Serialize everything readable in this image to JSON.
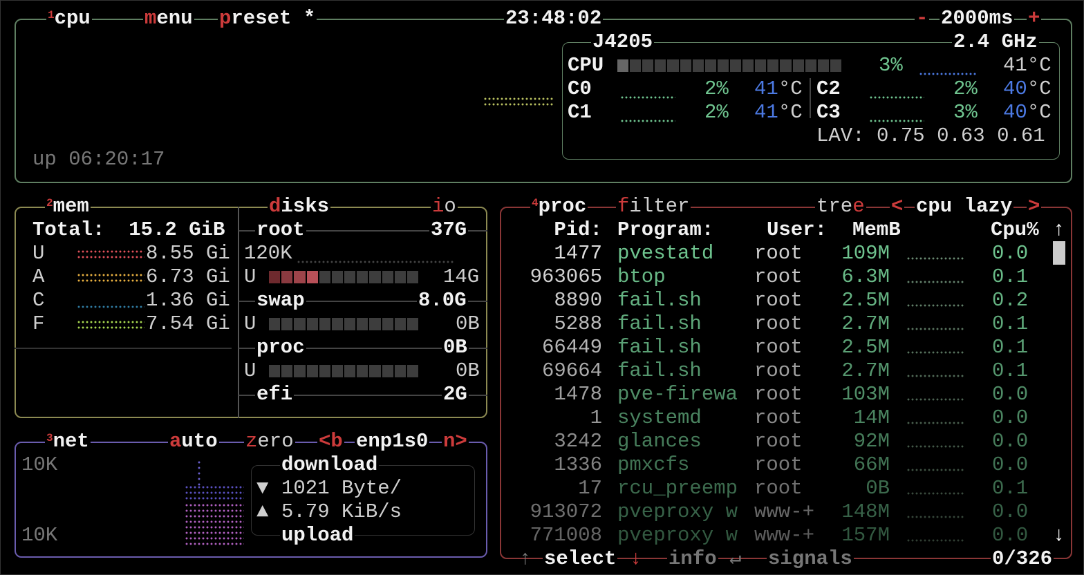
{
  "cpu": {
    "num": "1",
    "title": "cpu",
    "menu": {
      "key": "m",
      "rest": "enu"
    },
    "preset": {
      "key": "p",
      "rest": "reset *"
    },
    "clock": "23:48:02",
    "minus": "-",
    "interval": "2000ms",
    "plus": "+",
    "uptime": "up 06:20:17",
    "model": "J4205",
    "freq": "2.4 GHz",
    "total": {
      "label": "CPU",
      "pct": "3%",
      "temp": "41°C",
      "usage_percent": 3
    },
    "cores": [
      {
        "label": "C0",
        "pct": "2%",
        "temp": "41",
        "unit": "°C"
      },
      {
        "label": "C1",
        "pct": "2%",
        "temp": "41",
        "unit": "°C"
      },
      {
        "label": "C2",
        "pct": "2%",
        "temp": "40",
        "unit": "°C"
      },
      {
        "label": "C3",
        "pct": "3%",
        "temp": "40",
        "unit": "°C"
      }
    ],
    "lav_label": "LAV:",
    "lav": [
      "0.75",
      "0.63",
      "0.61"
    ]
  },
  "mem": {
    "num": "2",
    "title": "mem",
    "total": "Total:  15.2 GiB",
    "rows": [
      {
        "key": "U",
        "value": "8.55 Gi",
        "color": "#e0505a"
      },
      {
        "key": "A",
        "value": "6.73 Gi",
        "color": "#e8b040"
      },
      {
        "key": "C",
        "value": "1.36 Gi",
        "color": "#2f7aa0"
      },
      {
        "key": "F",
        "value": "7.54 Gi",
        "color": "#a8d850"
      }
    ]
  },
  "disks": {
    "title": {
      "key": "d",
      "rest": "isks"
    },
    "io": {
      "key": "i",
      "rest": "o"
    },
    "root": {
      "name": "root",
      "size": "37G",
      "io": "120K",
      "used_label": "U",
      "used": "14G",
      "usage_fraction": 0.33
    },
    "swap": {
      "name": "swap",
      "size": "8.0G",
      "used_label": "U",
      "used": "0B",
      "usage_fraction": 0
    },
    "proc": {
      "name": "proc",
      "size": "0B",
      "used_label": "U",
      "used": "0B",
      "usage_fraction": 0
    },
    "efi": {
      "name": "efi",
      "size": "2G"
    }
  },
  "net": {
    "num": "3",
    "title": "net",
    "auto": {
      "key": "a",
      "rest": "uto"
    },
    "zero": {
      "key": "z",
      "rest": "ero"
    },
    "prev": "<b",
    "iface": "enp1s0",
    "next": "n>",
    "scale_top": "10K",
    "scale_bottom": "10K",
    "download_label": "download",
    "download_icon": "▼",
    "download": "1021 Byte/",
    "upload_icon": "▲",
    "upload": "5.79 KiB/s",
    "upload_label": "upload"
  },
  "proc": {
    "num": "4",
    "title": "proc",
    "filter": {
      "key": "f",
      "rest": "ilter"
    },
    "tree": {
      "rest": "tre",
      "key": "e"
    },
    "sort_prev": "<",
    "sort": "cpu lazy",
    "sort_next": ">",
    "headers": {
      "pid": "Pid:",
      "program": "Program:",
      "user": "User:",
      "mem": "MemB",
      "cpu": "Cpu%"
    },
    "scroll_up": "↑",
    "scroll_down": "↓",
    "rows": [
      {
        "pid": "1477",
        "program": "pvestatd",
        "user": "root",
        "mem": "109M",
        "cpu": "0.0"
      },
      {
        "pid": "963065",
        "program": "btop",
        "user": "root",
        "mem": "6.3M",
        "cpu": "0.1"
      },
      {
        "pid": "8890",
        "program": "fail.sh",
        "user": "root",
        "mem": "2.5M",
        "cpu": "0.2"
      },
      {
        "pid": "5288",
        "program": "fail.sh",
        "user": "root",
        "mem": "2.7M",
        "cpu": "0.1"
      },
      {
        "pid": "66449",
        "program": "fail.sh",
        "user": "root",
        "mem": "2.5M",
        "cpu": "0.1"
      },
      {
        "pid": "69664",
        "program": "fail.sh",
        "user": "root",
        "mem": "2.7M",
        "cpu": "0.1"
      },
      {
        "pid": "1478",
        "program": "pve-firewa",
        "user": "root",
        "mem": "103M",
        "cpu": "0.0"
      },
      {
        "pid": "1",
        "program": "systemd",
        "user": "root",
        "mem": "14M",
        "cpu": "0.0"
      },
      {
        "pid": "3242",
        "program": "glances",
        "user": "root",
        "mem": "92M",
        "cpu": "0.0"
      },
      {
        "pid": "1336",
        "program": "pmxcfs",
        "user": "root",
        "mem": "66M",
        "cpu": "0.0"
      },
      {
        "pid": "17",
        "program": "rcu_preemp",
        "user": "root",
        "mem": "0B",
        "cpu": "0.1"
      },
      {
        "pid": "913072",
        "program": "pveproxy w",
        "user": "www-+",
        "mem": "148M",
        "cpu": "0.0"
      },
      {
        "pid": "771008",
        "program": "pveproxy w",
        "user": "www-+",
        "mem": "157M",
        "cpu": "0.0"
      }
    ],
    "footer": {
      "up": "↑",
      "select": "select",
      "down": "↓",
      "info": "info",
      "enter": "↵",
      "signals": "signals",
      "count": "0/326"
    }
  },
  "colors": {
    "cpu_box": "#5f7f62",
    "mem_box": "#8c8a52",
    "net_box": "#6a5cae",
    "proc_box": "#8a3636",
    "hotkey": "#cc3b3b"
  }
}
